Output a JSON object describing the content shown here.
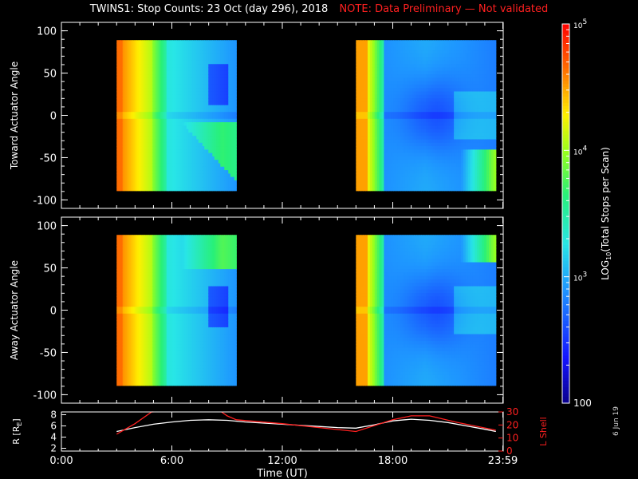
{
  "title": "TWINS1: Stop Counts: 23 Oct (day 296), 2018",
  "note": "NOTE: Data Preliminary — Not validated",
  "datestamp": "6 Jun 19",
  "colors": {
    "background": "#000000",
    "axes": "#ffffff",
    "note": "#ff2020",
    "r_line": "#ffffff",
    "lshell_line": "#ff2020"
  },
  "chart_data": [
    {
      "type": "heatmap",
      "name": "toward",
      "ylabel": "Toward Actuator Angle",
      "ylim": [
        -110,
        110
      ],
      "yticks": [
        100,
        50,
        0,
        -50,
        -100
      ],
      "xlim": [
        0,
        24
      ],
      "data_x_ranges": [
        [
          3.0,
          9.5
        ],
        [
          16.0,
          23.6
        ]
      ],
      "data_y_range": [
        -89,
        89
      ],
      "colormap": "rainbow-log",
      "cbar_min_log": 2.0,
      "cbar_max_log": 5.0
    },
    {
      "type": "heatmap",
      "name": "away",
      "ylabel": "Away Actuator Angle",
      "ylim": [
        -110,
        110
      ],
      "yticks": [
        100,
        50,
        0,
        -50,
        -100
      ],
      "xlim": [
        0,
        24
      ],
      "data_x_ranges": [
        [
          3.0,
          9.5
        ],
        [
          16.0,
          23.6
        ]
      ],
      "data_y_range": [
        -89,
        89
      ],
      "colormap": "rainbow-log",
      "cbar_min_log": 2.0,
      "cbar_max_log": 5.0
    },
    {
      "type": "line",
      "name": "orbit",
      "xlabel": "Time (UT)",
      "xlim": [
        0,
        24
      ],
      "xticks": [
        "0:00",
        "6:00",
        "12:00",
        "18:00",
        "23:59"
      ],
      "xtick_values": [
        0,
        6,
        12,
        18,
        23.98
      ],
      "ylabel_left": "R [R",
      "ylabel_left_sub": "E",
      "ylabel_left_end": "]",
      "ylim_left": [
        1.5,
        8.5
      ],
      "yticks_left": [
        "2",
        "4",
        "6",
        "8"
      ],
      "ylabel_right": "L Shell",
      "ylim_right": [
        0,
        30
      ],
      "yticks_right": [
        "0",
        "10",
        "20",
        "30"
      ],
      "series": [
        {
          "axis": "left",
          "color": "#ffffff",
          "x": [
            3.0,
            4.0,
            5.0,
            6.0,
            7.0,
            8.0,
            9.0,
            10.0,
            11.0,
            12.0,
            13.0,
            14.0,
            15.0,
            16.0,
            17.0,
            18.0,
            19.0,
            20.0,
            21.0,
            22.0,
            23.0,
            23.6
          ],
          "y": [
            5.0,
            5.7,
            6.3,
            6.7,
            7.0,
            7.1,
            7.0,
            6.7,
            6.5,
            6.3,
            6.1,
            5.9,
            5.7,
            5.6,
            6.2,
            6.9,
            7.2,
            7.0,
            6.6,
            6.0,
            5.4,
            5.0
          ]
        },
        {
          "axis": "right",
          "color": "#ff2020",
          "x": [
            3.0,
            4.0,
            4.9,
            5.0,
            null,
            8.7,
            9.0,
            9.5,
            12.0,
            14.0,
            16.0,
            18.0,
            19.0,
            20.0,
            21.5,
            23.6
          ],
          "y": [
            13.0,
            21.0,
            30.0,
            30.0,
            null,
            30.0,
            27.0,
            24.0,
            21.0,
            18.0,
            15.0,
            24.0,
            27.0,
            27.0,
            22.0,
            16.0
          ]
        }
      ]
    },
    {
      "type": "colorbar",
      "label": "LOG",
      "label_sub": "10",
      "label_end": "(Total Stops per Scan)",
      "ticks": [
        {
          "base": "10",
          "exp": "5",
          "log": 5.0
        },
        {
          "base": "10",
          "exp": "4",
          "log": 4.0
        },
        {
          "base": "10",
          "exp": "3",
          "log": 3.0
        },
        {
          "base": "100",
          "exp": "",
          "log": 2.0
        }
      ],
      "min_log": 2.0,
      "max_log": 5.0
    }
  ]
}
